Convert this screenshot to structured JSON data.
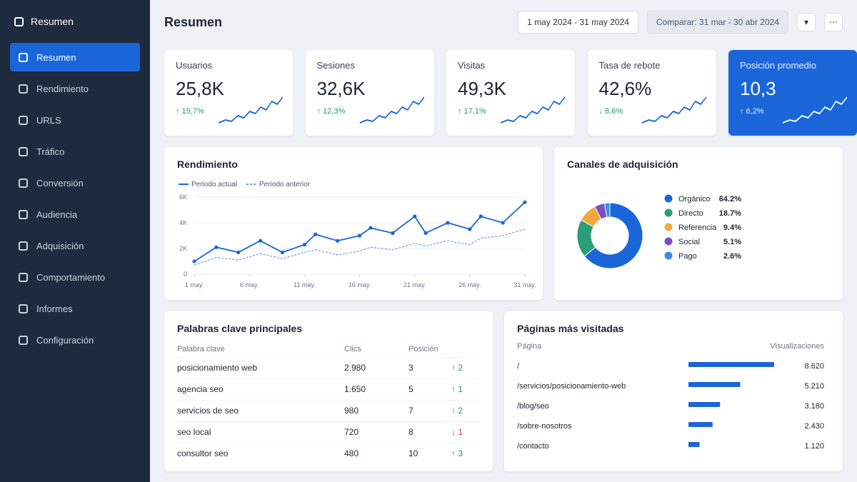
{
  "sidebar": {
    "title": "Resumen",
    "items": [
      "Resumen",
      "Rendimiento",
      "URLS",
      "Tráfico",
      "Conversión",
      "Audiencia",
      "Adquisición",
      "Comportamiento",
      "Informes",
      "Configuración"
    ]
  },
  "header": {
    "title": "Resumen",
    "date_range": "1 may 2024 - 31 may 2024",
    "compare": "Comparar: 31 mar - 30 abr 2024"
  },
  "kpis": [
    {
      "label": "Usuarios",
      "value": "25,8K",
      "change": "↑ 15,7%"
    },
    {
      "label": "Sesiones",
      "value": "32,6K",
      "change": "↑ 12,3%"
    },
    {
      "label": "Visitas",
      "value": "49,3K",
      "change": "↑ 17,1%"
    },
    {
      "label": "Tasa de rebote",
      "value": "42,6%",
      "change": "↓ 8,6%"
    },
    {
      "label": "Posición promedio",
      "value": "10,3",
      "change": "↑ 6,2%"
    }
  ],
  "performance": {
    "title": "Rendimiento",
    "chart_data": {
      "type": "line",
      "x": [
        1,
        3,
        5,
        7,
        9,
        11,
        12,
        14,
        16,
        17,
        19,
        21,
        22,
        24,
        26,
        27,
        29,
        31
      ],
      "series": [
        {
          "name": "Periodo actual",
          "color": "#1a66d9",
          "values": [
            1000,
            2100,
            1700,
            2600,
            1700,
            2300,
            3100,
            2600,
            3000,
            3600,
            3200,
            4500,
            3200,
            4000,
            3500,
            4500,
            4000,
            5600
          ]
        },
        {
          "name": "Periodo anterior",
          "color": "#6c9be0",
          "values": [
            700,
            1300,
            1100,
            1600,
            1200,
            1700,
            1900,
            1500,
            1800,
            2100,
            1900,
            2400,
            2200,
            2600,
            2300,
            2800,
            3000,
            3500
          ]
        }
      ],
      "xlim": [
        1,
        31
      ],
      "xticks": [
        {
          "value": 1,
          "label": "1 may."
        },
        {
          "value": 6,
          "label": "6 may."
        },
        {
          "value": 11,
          "label": "11 may."
        },
        {
          "value": 16,
          "label": "16 may."
        },
        {
          "value": 21,
          "label": "21 may."
        },
        {
          "value": 26,
          "label": "26 may."
        },
        {
          "value": 31,
          "label": "31 may."
        }
      ],
      "ylim": [
        0,
        6000
      ],
      "yticks": [
        0,
        {
          "value": 2000,
          "label": "2K"
        },
        {
          "value": 4000,
          "label": "4K"
        },
        {
          "value": 6000,
          "label": "6K"
        }
      ]
    }
  },
  "channels": {
    "title": "Canales de adquisición",
    "chart_data": {
      "type": "pie",
      "categories": [
        "Orgánico",
        "Directo",
        "Referencia",
        "Social",
        "Pago"
      ],
      "values": [
        64.2,
        18.7,
        9.4,
        5.1,
        2.6
      ],
      "value_labels": [
        "64.2%",
        "18.7%",
        "9.4%",
        "5.1%",
        "2.6%"
      ],
      "colors": [
        "#1a66d9",
        "#2a9d7a",
        "#f2a93b",
        "#7b4fc4",
        "#3a8ee6"
      ]
    }
  },
  "keywords": {
    "title": "Palabras clave principales",
    "headers": [
      "Palabra clave",
      "Clics",
      "Posición"
    ],
    "rows": [
      [
        "posicionamiento web",
        "2.980",
        "3",
        "↑ 2"
      ],
      [
        "agencia seo",
        "1.650",
        "5",
        "↑ 1"
      ],
      [
        "servicios de seo",
        "980",
        "7",
        "↑ 2"
      ],
      [
        "seo local",
        "720",
        "8",
        "↓ 1"
      ],
      [
        "consultor seo",
        "480",
        "10",
        "↑ 3"
      ]
    ],
    "trends": [
      "up",
      "up",
      "up",
      "down",
      "up"
    ]
  },
  "top_pages": {
    "title": "Páginas más visitadas",
    "headers": [
      "Página",
      "Visualizaciones"
    ],
    "pages": [
      "/",
      "/servicios/posicionamiento-web",
      "/blog/seo",
      "/sobre-nosotros",
      "/contacto"
    ],
    "values": [
      8620,
      5210,
      3180,
      2430,
      1120
    ],
    "value_labels": [
      "8.620",
      "5.210",
      "3.180",
      "2.430",
      "1.120"
    ],
    "color": "#1a66d9"
  }
}
